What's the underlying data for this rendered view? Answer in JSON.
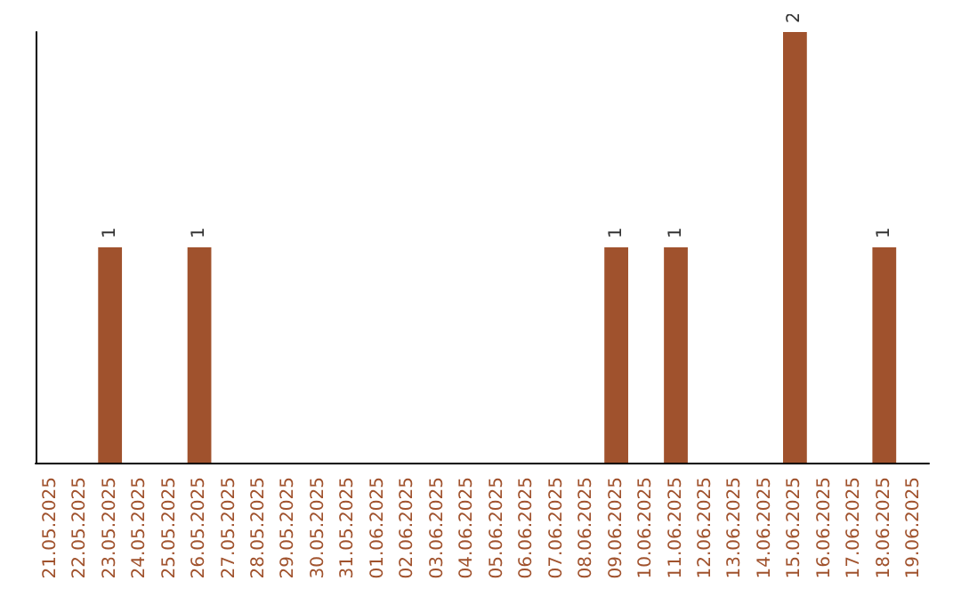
{
  "chart_data": {
    "type": "bar",
    "categories": [
      "21.05.2025",
      "22.05.2025",
      "23.05.2025",
      "24.05.2025",
      "25.05.2025",
      "26.05.2025",
      "27.05.2025",
      "28.05.2025",
      "29.05.2025",
      "30.05.2025",
      "31.05.2025",
      "01.06.2025",
      "02.06.2025",
      "03.06.2025",
      "04.06.2025",
      "05.06.2025",
      "06.06.2025",
      "07.06.2025",
      "08.06.2025",
      "09.06.2025",
      "10.06.2025",
      "11.06.2025",
      "12.06.2025",
      "13.06.2025",
      "14.06.2025",
      "15.06.2025",
      "16.06.2025",
      "17.06.2025",
      "18.06.2025",
      "19.06.2025"
    ],
    "values": [
      0,
      0,
      1,
      0,
      0,
      1,
      0,
      0,
      0,
      0,
      0,
      0,
      0,
      0,
      0,
      0,
      0,
      0,
      0,
      1,
      0,
      1,
      0,
      0,
      0,
      2,
      0,
      0,
      1,
      0
    ],
    "value_labels": [
      null,
      null,
      "1",
      null,
      null,
      "1",
      null,
      null,
      null,
      null,
      null,
      null,
      null,
      null,
      null,
      null,
      null,
      null,
      null,
      "1",
      null,
      "1",
      null,
      null,
      null,
      "2",
      null,
      null,
      "1",
      null
    ],
    "color": "#a0522d",
    "tick_labels": "x",
    "grid": false
  }
}
